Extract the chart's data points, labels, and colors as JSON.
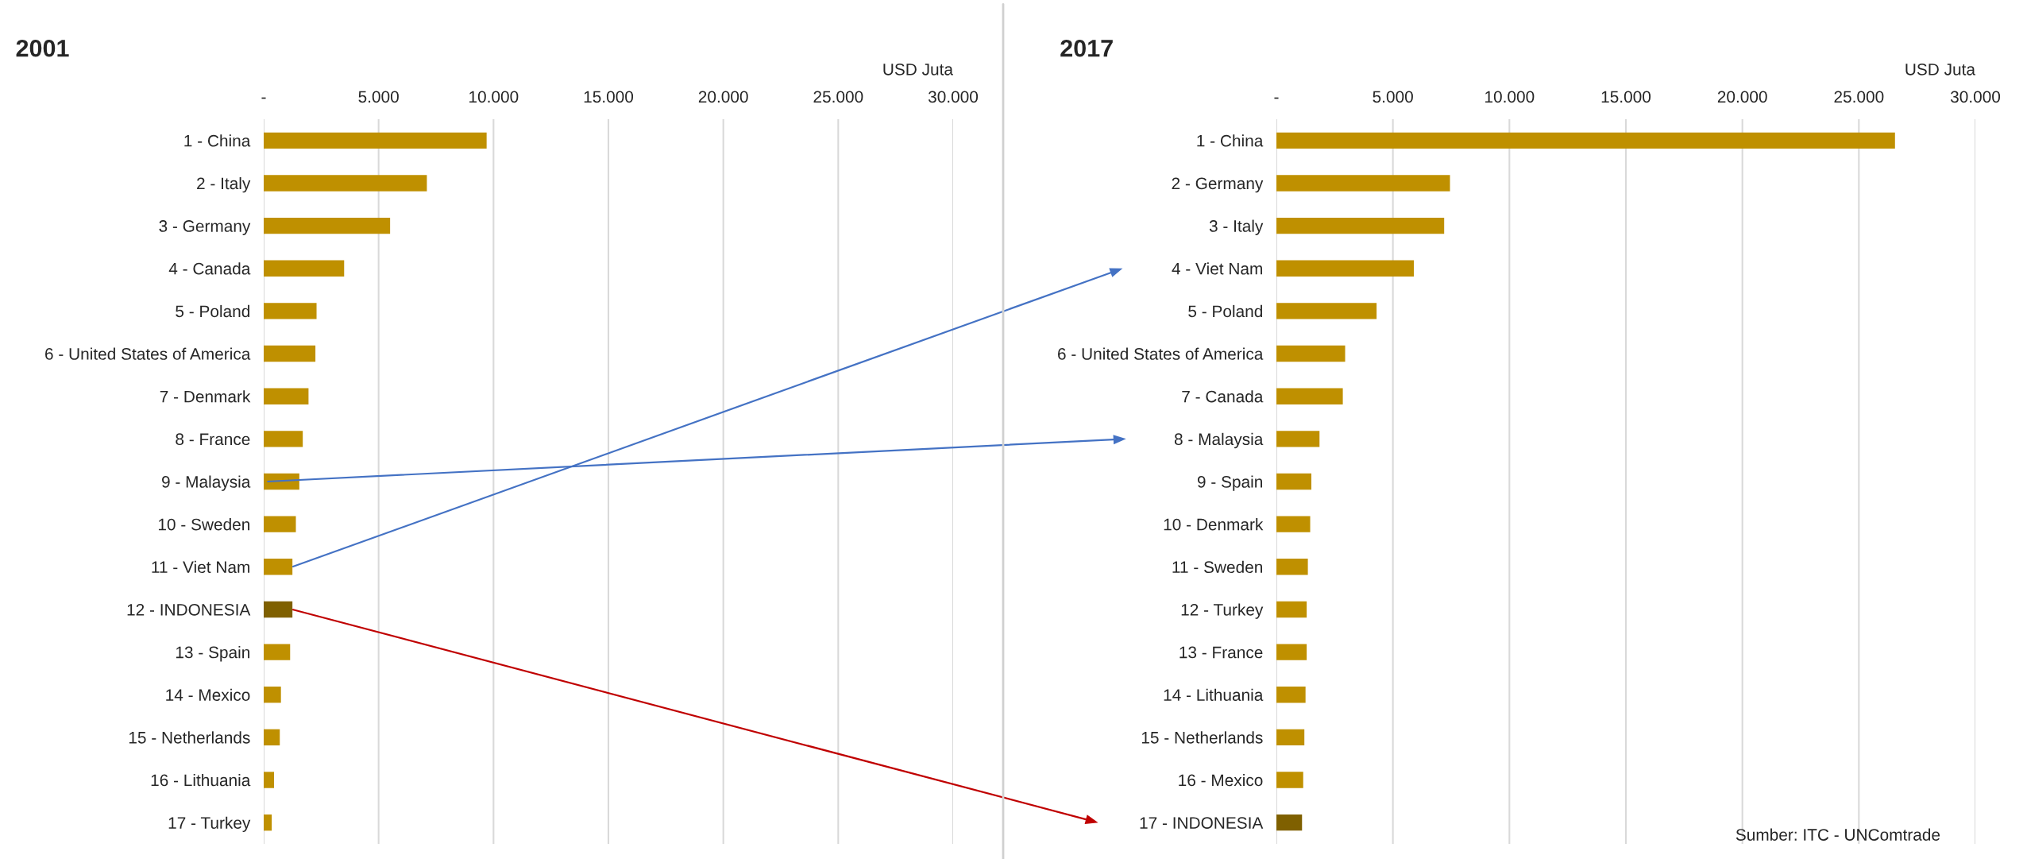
{
  "chart_data": [
    {
      "type": "bar",
      "orientation": "horizontal",
      "title": "2001",
      "xlabel": "USD Juta",
      "categories": [
        "1 - China",
        "2 - Italy",
        "3 - Germany",
        "4 - Canada",
        "5 - Poland",
        "6 - United States of America",
        "7 - Denmark",
        "8 - France",
        "9 - Malaysia",
        "10 - Sweden",
        "11 - Viet Nam",
        "12 - INDONESIA",
        "13 - Spain",
        "14 - Mexico",
        "15 - Netherlands",
        "16 - Lithuania",
        "17 - Turkey"
      ],
      "values": [
        9700,
        7100,
        5500,
        3500,
        2300,
        2250,
        1950,
        1700,
        1550,
        1400,
        1250,
        1250,
        1150,
        750,
        700,
        450,
        350
      ],
      "colors": [
        "#bf9000",
        "#bf9000",
        "#bf9000",
        "#bf9000",
        "#bf9000",
        "#bf9000",
        "#bf9000",
        "#bf9000",
        "#bf9000",
        "#bf9000",
        "#bf9000",
        "#7f6000",
        "#bf9000",
        "#bf9000",
        "#bf9000",
        "#bf9000",
        "#bf9000"
      ],
      "xlim": [
        0,
        30000
      ],
      "xticks": [
        {
          "value": 0,
          "label": "-"
        },
        {
          "value": 5000,
          "label": "5.000"
        },
        {
          "value": 10000,
          "label": "10.000"
        },
        {
          "value": 15000,
          "label": "15.000"
        },
        {
          "value": 20000,
          "label": "20.000"
        },
        {
          "value": 25000,
          "label": "25.000"
        },
        {
          "value": 30000,
          "label": "30.000"
        }
      ],
      "grid": "x"
    },
    {
      "type": "bar",
      "orientation": "horizontal",
      "title": "2017",
      "xlabel": "USD Juta",
      "categories": [
        "1 - China",
        "2 - Germany",
        "3 - Italy",
        "4 - Viet Nam",
        "5 - Poland",
        "6 - United States of America",
        "7 - Canada",
        "8 - Malaysia",
        "9 - Spain",
        "10 - Denmark",
        "11 - Sweden",
        "12 - Turkey",
        "13 - France",
        "14 - Lithuania",
        "15 - Netherlands",
        "16 - Mexico",
        "17 - INDONESIA"
      ],
      "values": [
        26550,
        7450,
        7200,
        5900,
        4300,
        2950,
        2850,
        1850,
        1500,
        1450,
        1350,
        1300,
        1300,
        1250,
        1200,
        1150,
        1100
      ],
      "colors": [
        "#bf9000",
        "#bf9000",
        "#bf9000",
        "#bf9000",
        "#bf9000",
        "#bf9000",
        "#bf9000",
        "#bf9000",
        "#bf9000",
        "#bf9000",
        "#bf9000",
        "#bf9000",
        "#bf9000",
        "#bf9000",
        "#bf9000",
        "#bf9000",
        "#7f6000"
      ],
      "xlim": [
        0,
        30000
      ],
      "xticks": [
        {
          "value": 0,
          "label": "-"
        },
        {
          "value": 5000,
          "label": "5.000"
        },
        {
          "value": 10000,
          "label": "10.000"
        },
        {
          "value": 15000,
          "label": "15.000"
        },
        {
          "value": 20000,
          "label": "20.000"
        },
        {
          "value": 25000,
          "label": "25.000"
        },
        {
          "value": 30000,
          "label": "30.000"
        }
      ],
      "grid": "x",
      "annotations": [
        "Sumber: ITC - UNComtrade"
      ]
    }
  ]
}
